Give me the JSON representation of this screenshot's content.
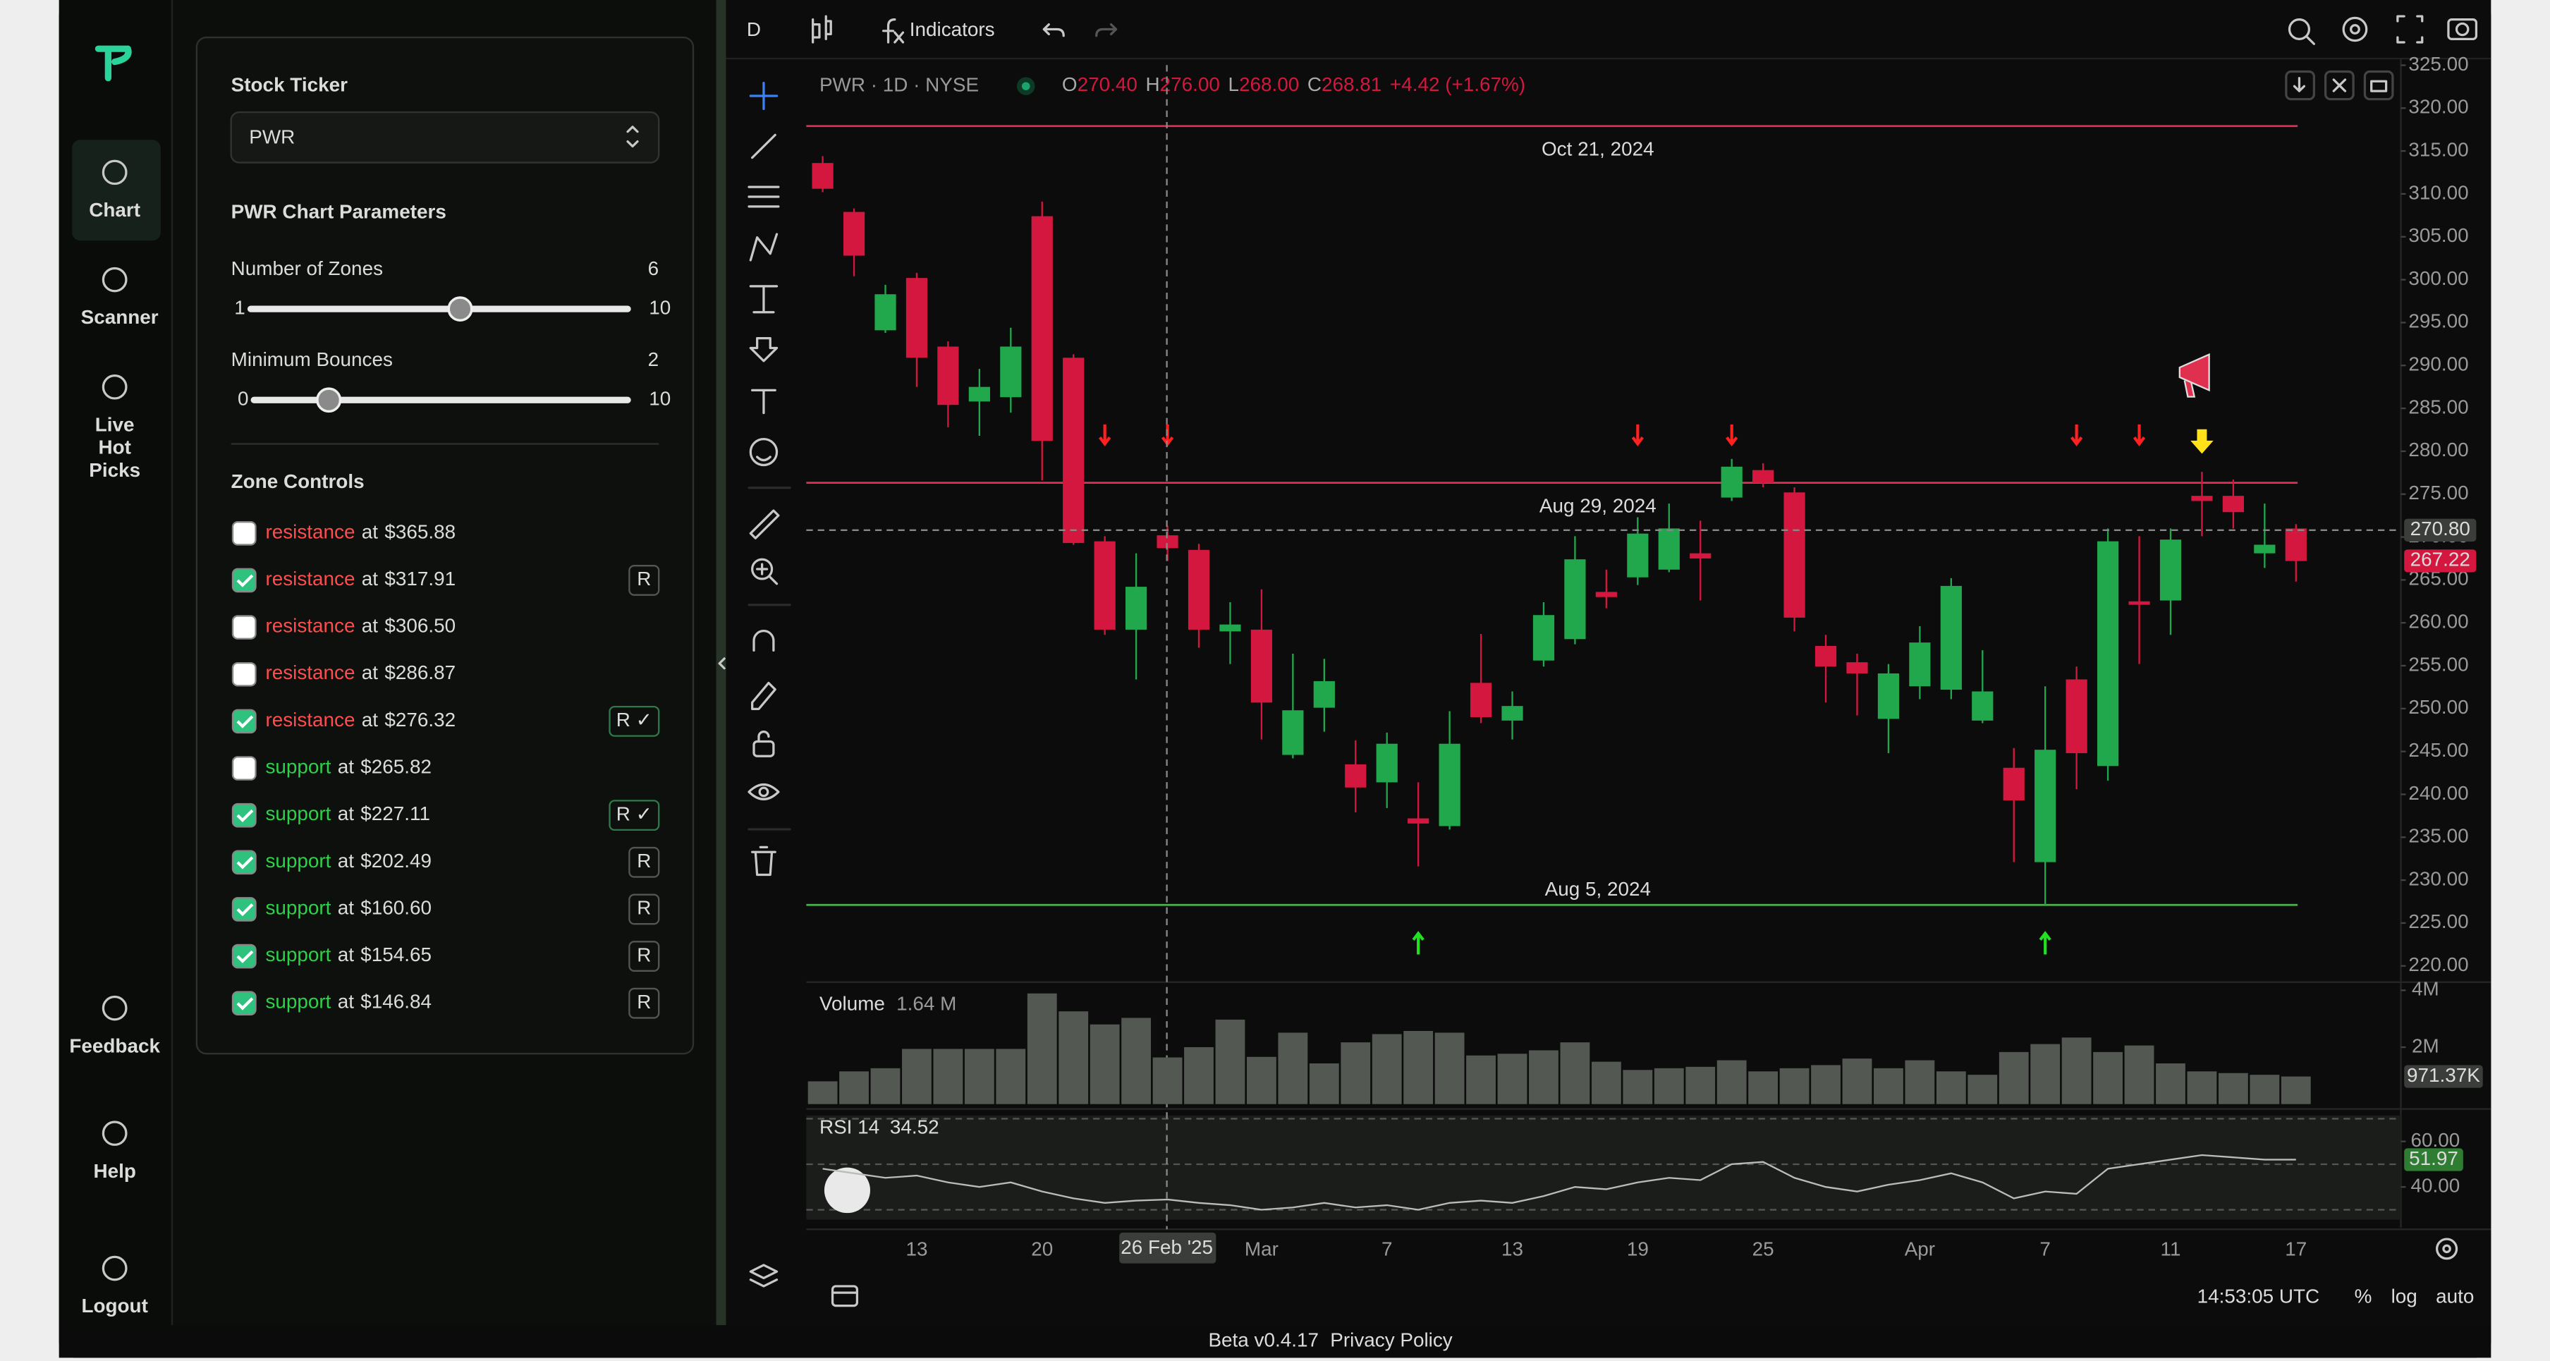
{
  "sidebar": {
    "nav": [
      "Chart",
      "Scanner",
      [
        "Live",
        "Hot",
        "Picks"
      ],
      "Feedback",
      "Help",
      "Logout"
    ]
  },
  "panel": {
    "ticker_label": "Stock Ticker",
    "ticker": "PWR",
    "params_title": "PWR Chart Parameters",
    "sliders": [
      {
        "label": "Number of Zones",
        "value": 6,
        "min": 1,
        "max": 10
      },
      {
        "label": "Minimum Bounces",
        "value": 2,
        "min": 0,
        "max": 10
      }
    ],
    "zones_title": "Zone Controls",
    "connector": "at",
    "zones": [
      {
        "kind": "resistance",
        "value": 365.88,
        "label": "$365.88",
        "checked": false
      },
      {
        "kind": "resistance",
        "value": 317.91,
        "label": "$317.91",
        "checked": true,
        "badge": "R",
        "date": "Oct 21, 2024"
      },
      {
        "kind": "resistance",
        "value": 306.5,
        "label": "$306.50",
        "checked": false
      },
      {
        "kind": "resistance",
        "value": 286.87,
        "label": "$286.87",
        "checked": false
      },
      {
        "kind": "resistance",
        "value": 276.32,
        "label": "$276.32",
        "checked": true,
        "badge": "R ✓",
        "date": "Aug 29, 2024"
      },
      {
        "kind": "support",
        "value": 265.82,
        "label": "$265.82",
        "checked": false
      },
      {
        "kind": "support",
        "value": 227.11,
        "label": "$227.11",
        "checked": true,
        "badge": "R ✓",
        "date": "Aug 5, 2024"
      },
      {
        "kind": "support",
        "value": 202.49,
        "label": "$202.49",
        "checked": true,
        "badge": "R"
      },
      {
        "kind": "support",
        "value": 160.6,
        "label": "$160.60",
        "checked": true,
        "badge": "R"
      },
      {
        "kind": "support",
        "value": 154.65,
        "label": "$154.65",
        "checked": true,
        "badge": "R"
      },
      {
        "kind": "support",
        "value": 146.84,
        "label": "$146.84",
        "checked": true,
        "badge": "R"
      }
    ]
  },
  "chart": {
    "type": "candlestick",
    "interval": "D",
    "indicators": "Indicators",
    "symbol": "PWR · 1D · NYSE",
    "ohlc": [
      {
        "label": "O",
        "value": "270.40"
      },
      {
        "label": "H",
        "value": "276.00"
      },
      {
        "label": "L",
        "value": "268.00"
      },
      {
        "label": "C",
        "value": "268.81"
      }
    ],
    "change": "+4.42 (+1.67%)",
    "categories": [
      null,
      null,
      null,
      "13",
      null,
      null,
      null,
      "20",
      null,
      null,
      null,
      null,
      null,
      null,
      "Mar",
      null,
      null,
      null,
      "7",
      null,
      null,
      null,
      "13",
      null,
      null,
      null,
      "19",
      null,
      null,
      null,
      "25",
      null,
      null,
      null,
      null,
      "Apr",
      null,
      null,
      null,
      "7",
      null,
      null,
      null,
      "11",
      null,
      null,
      null,
      "17"
    ],
    "crosshair_label": "26 Feb '25",
    "open": [
      313.6,
      307.9,
      294.1,
      300.2,
      292.2,
      285.8,
      286.3,
      307.4,
      290.9,
      269.5,
      259.2,
      270.2,
      268.5,
      259.0,
      259.2,
      244.6,
      250.1,
      243.5,
      241.4,
      237.2,
      236.3,
      253.0,
      248.6,
      255.6,
      258.1,
      263.6,
      265.3,
      266.2,
      268.1,
      274.6,
      277.8,
      275.2,
      257.3,
      255.4,
      248.8,
      252.6,
      252.2,
      248.6,
      243.1,
      232.1,
      253.4,
      243.3,
      262.5,
      262.6,
      274.8,
      274.8,
      268.1,
      271.0
    ],
    "high": [
      314.4,
      308.3,
      299.4,
      300.8,
      292.8,
      289.6,
      294.4,
      309.1,
      291.3,
      270.1,
      268.1,
      271.3,
      269.2,
      262.4,
      263.9,
      256.4,
      255.8,
      246.3,
      247.2,
      241.4,
      249.7,
      258.7,
      252.0,
      262.4,
      270.1,
      266.2,
      272.3,
      273.9,
      271.9,
      279.1,
      278.6,
      275.8,
      258.6,
      256.4,
      255.2,
      259.6,
      265.2,
      256.8,
      245.4,
      252.6,
      254.9,
      271.0,
      270.1,
      271.0,
      277.6,
      276.7,
      273.9,
      271.5
    ],
    "low": [
      310.2,
      300.4,
      293.8,
      287.5,
      282.8,
      281.8,
      284.5,
      276.6,
      269.1,
      258.6,
      253.4,
      267.2,
      257.1,
      255.2,
      246.4,
      244.2,
      247.3,
      237.9,
      238.4,
      231.6,
      235.9,
      248.3,
      246.4,
      254.9,
      257.5,
      261.7,
      264.4,
      265.9,
      262.6,
      274.2,
      275.8,
      259.0,
      250.7,
      249.2,
      244.8,
      251.1,
      251.1,
      248.3,
      232.1,
      227.1,
      240.6,
      241.6,
      255.2,
      258.6,
      270.1,
      271.0,
      266.4,
      264.8
    ],
    "close": [
      310.6,
      302.8,
      298.3,
      290.9,
      285.4,
      287.5,
      292.2,
      281.2,
      269.3,
      259.2,
      264.2,
      268.7,
      259.2,
      259.8,
      250.7,
      249.8,
      253.2,
      240.8,
      245.9,
      236.6,
      245.9,
      249.0,
      250.3,
      260.9,
      267.4,
      263.0,
      270.4,
      271.0,
      267.5,
      278.2,
      276.3,
      260.6,
      254.9,
      254.1,
      254.1,
      257.7,
      264.3,
      252.0,
      239.3,
      245.2,
      244.8,
      269.5,
      262.1,
      269.7,
      274.2,
      272.9,
      269.1,
      267.2
    ],
    "up_color": "#22a84c",
    "down_color": "#d4173f",
    "ylim": [
      218.3,
      325.4
    ],
    "yticks": [
      {
        "value": 220,
        "label": "220.00"
      },
      {
        "value": 225,
        "label": "225.00"
      },
      {
        "value": 230,
        "label": "230.00"
      },
      {
        "value": 235,
        "label": "235.00"
      },
      {
        "value": 240,
        "label": "240.00"
      },
      {
        "value": 245,
        "label": "245.00"
      },
      {
        "value": 250,
        "label": "250.00"
      },
      {
        "value": 255,
        "label": "255.00"
      },
      {
        "value": 260,
        "label": "260.00"
      },
      {
        "value": 265,
        "label": "265.00"
      },
      {
        "value": 270,
        "label": "270.00"
      },
      {
        "value": 275,
        "label": "275.00"
      },
      {
        "value": 280,
        "label": "280.00"
      },
      {
        "value": 285,
        "label": "285.00"
      },
      {
        "value": 290,
        "label": "290.00"
      },
      {
        "value": 295,
        "label": "295.00"
      },
      {
        "value": 300,
        "label": "300.00"
      },
      {
        "value": 305,
        "label": "305.00"
      },
      {
        "value": 310,
        "label": "310.00"
      },
      {
        "value": 315,
        "label": "315.00"
      },
      {
        "value": 320,
        "label": "320.00"
      },
      {
        "value": 325,
        "label": "325.00"
      }
    ],
    "price_tags": [
      {
        "value": 270.8,
        "label": "270.80",
        "color": "#3b3d3b"
      },
      {
        "value": 267.22,
        "label": "267.22",
        "color": "#d4173f"
      }
    ],
    "volume": {
      "label": "Volume",
      "current": "1.64 M",
      "color": "#535853",
      "values": [
        0.8,
        1.15,
        1.26,
        1.94,
        1.94,
        1.94,
        1.94,
        3.89,
        3.26,
        2.8,
        3.03,
        1.64,
        2.0,
        2.97,
        1.66,
        2.51,
        1.43,
        2.17,
        2.46,
        2.57,
        2.51,
        1.71,
        1.77,
        1.89,
        2.17,
        1.49,
        1.2,
        1.26,
        1.31,
        1.54,
        1.15,
        1.26,
        1.37,
        1.6,
        1.26,
        1.54,
        1.15,
        1.03,
        1.83,
        2.11,
        2.34,
        1.83,
        2.06,
        1.43,
        1.15,
        1.09,
        1.03,
        0.97
      ],
      "ylim": [
        0,
        4.23
      ],
      "yticks": [
        {
          "value": 4,
          "label": "4M"
        },
        {
          "value": 2,
          "label": "2M"
        }
      ],
      "tag": {
        "value": 0.97137,
        "label": "971.37K"
      }
    },
    "rsi": {
      "label": "RSI 14",
      "current": "34.52",
      "color": "#b9bcb9",
      "values": [
        48,
        46,
        44,
        45,
        42,
        40,
        42,
        38,
        35,
        33,
        34,
        34.5,
        33,
        32,
        30,
        31,
        33,
        31,
        32,
        30,
        33,
        34,
        33,
        36,
        40,
        39,
        42,
        44,
        43,
        50,
        51,
        44,
        40,
        38,
        41,
        43,
        46,
        42,
        35,
        38,
        37,
        48,
        50,
        52,
        54,
        53,
        52,
        52
      ],
      "ylim": [
        25.7,
        72.1
      ],
      "yticks": [
        {
          "value": 60,
          "label": "60.00"
        },
        {
          "value": 40,
          "label": "40.00"
        }
      ],
      "tag": {
        "value": 51.97,
        "label": "51.97"
      }
    }
  },
  "footer": {
    "time": "14:53:05 UTC",
    "percent": "%",
    "log": "log",
    "auto": "auto",
    "version": "Beta v0.4.17",
    "privacy": "Privacy Policy"
  }
}
